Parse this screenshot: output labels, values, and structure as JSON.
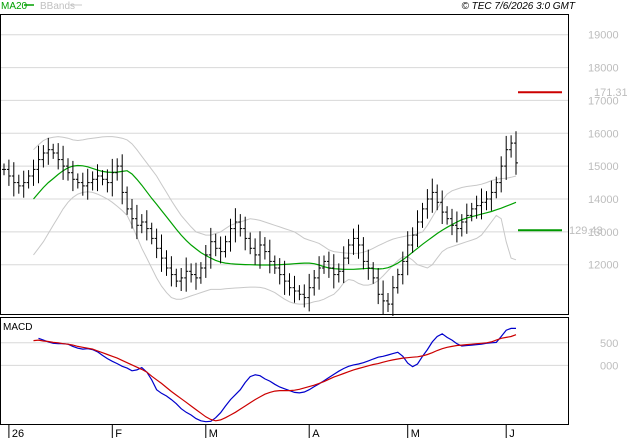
{
  "header": {
    "legend_ma": "MA20",
    "legend_bb": "BBands",
    "copyright": "© TEC 7/6/2026 3:0 GMT"
  },
  "chart_data": [
    {
      "type": "ohlc",
      "title": "",
      "y_ticks": [
        "19000",
        "18000",
        "17000",
        "16000",
        "15000",
        "14000",
        "13000",
        "12000"
      ],
      "y_tick_values": [
        19000,
        18000,
        17000,
        16000,
        15000,
        14000,
        13000,
        12000
      ],
      "ylim": [
        10500,
        19600
      ],
      "x_ticks": [
        "26",
        "F",
        "M",
        "A",
        "M",
        "J"
      ],
      "x_tick_index": [
        1,
        22,
        41,
        62,
        82,
        102
      ],
      "n_bars": 105,
      "colors": {
        "bars": "#000000",
        "ma": "#00a000",
        "bands": "#c8c8c8",
        "resistance": "#cc0000",
        "support": "#009900",
        "grid": "#d8d8d8"
      },
      "resistance": {
        "label": "171.31",
        "value": 17250
      },
      "support": {
        "label": "129.43",
        "value": 13050
      },
      "close": [
        14900,
        14700,
        14500,
        14400,
        14500,
        14700,
        14900,
        15200,
        15400,
        15500,
        15400,
        15200,
        15000,
        14800,
        14600,
        14500,
        14400,
        14500,
        14600,
        14700,
        14600,
        14500,
        14800,
        15000,
        14200,
        13700,
        13400,
        13200,
        13300,
        13100,
        12800,
        12500,
        12200,
        11900,
        11700,
        11500,
        11600,
        11800,
        11700,
        11600,
        11900,
        12300,
        12700,
        12500,
        12400,
        12700,
        13100,
        13300,
        13100,
        12800,
        12500,
        12300,
        12600,
        12400,
        12100,
        11900,
        11700,
        11500,
        11300,
        11200,
        11100,
        11000,
        11300,
        11600,
        11900,
        12100,
        11900,
        11700,
        11800,
        12200,
        12600,
        12800,
        12600,
        12100,
        11900,
        11600,
        11100,
        10900,
        10800,
        11300,
        11700,
        12100,
        12600,
        12900,
        13300,
        13700,
        14000,
        14200,
        13900,
        13600,
        13400,
        13200,
        13100,
        13300,
        13500,
        13700,
        13800,
        13900,
        14000,
        14200,
        14500,
        15000,
        15500,
        15700,
        15100
      ],
      "ma20": [
        14000,
        14180,
        14350,
        14500,
        14620,
        14750,
        14860,
        14950,
        15000,
        15020,
        15010,
        14980,
        14930,
        14880,
        14840,
        14820,
        14810,
        14820,
        14840,
        14860,
        14760,
        14600,
        14420,
        14220,
        14020,
        13840,
        13650,
        13460,
        13270,
        13080,
        12900,
        12740,
        12600,
        12480,
        12370,
        12280,
        12200,
        12130,
        12080,
        12050,
        12030,
        12020,
        12010,
        12005,
        12000,
        11995,
        11990,
        11990,
        11990,
        11995,
        12000,
        12010,
        12020,
        12030,
        12040,
        12050,
        12050,
        12030,
        11990,
        11940,
        11900,
        11880,
        11870,
        11860,
        11860,
        11860,
        11870,
        11880,
        11890,
        11880,
        11870,
        11880,
        11910,
        11970,
        12050,
        12150,
        12260,
        12380,
        12500,
        12620,
        12730,
        12840,
        12950,
        13050,
        13140,
        13220,
        13300,
        13370,
        13420,
        13460,
        13500,
        13540,
        13580,
        13620,
        13670,
        13720,
        13780,
        13840,
        13900
      ],
      "bb_upper": [
        15500,
        15650,
        15780,
        15850,
        15880,
        15900,
        15880,
        15850,
        15800,
        15780,
        15800,
        15830,
        15850,
        15870,
        15890,
        15900,
        15900,
        15880,
        15850,
        15800,
        15680,
        15500,
        15300,
        15100,
        14900,
        14700,
        14450,
        14200,
        13950,
        13720,
        13500,
        13320,
        13150,
        13000,
        12950,
        12900,
        12900,
        12950,
        13000,
        13100,
        13200,
        13250,
        13300,
        13350,
        13400,
        13380,
        13350,
        13300,
        13250,
        13200,
        13150,
        13100,
        13050,
        13000,
        12900,
        12800,
        12750,
        12700,
        12650,
        12550,
        12450,
        12400,
        12380,
        12360,
        12350,
        12340,
        12350,
        12380,
        12430,
        12500,
        12580,
        12650,
        12720,
        12780,
        12820,
        12850,
        12880,
        12900,
        12950,
        13000,
        13200,
        13450,
        13700,
        13950,
        14150,
        14250,
        14300,
        14350,
        14380,
        14400,
        14420,
        14450,
        14500,
        14560,
        14600,
        14620,
        14630,
        14660,
        14700
      ],
      "bb_lower": [
        12300,
        12500,
        12700,
        12950,
        13200,
        13450,
        13700,
        13900,
        14050,
        14150,
        14200,
        14220,
        14200,
        14150,
        14080,
        14000,
        13900,
        13780,
        13650,
        13500,
        13200,
        12850,
        12500,
        12200,
        11900,
        11600,
        11350,
        11150,
        11000,
        10950,
        10950,
        11000,
        11050,
        11100,
        11150,
        11200,
        11250,
        11250,
        11250,
        11270,
        11280,
        11290,
        11300,
        11310,
        11320,
        11320,
        11310,
        11280,
        11220,
        11150,
        11050,
        10950,
        10870,
        10820,
        10800,
        10800,
        10830,
        10870,
        10900,
        10950,
        11030,
        11100,
        11250,
        11450,
        11550,
        11520,
        11430,
        11380,
        11380,
        11420,
        11520,
        11660,
        11820,
        11980,
        12120,
        12240,
        12240,
        12140,
        12000,
        11950,
        11900,
        12000,
        12200,
        12400,
        12500,
        12550,
        12600,
        12650,
        12700,
        12750,
        12800,
        12900,
        13100,
        13300,
        13500,
        13400,
        12700,
        12200,
        12150
      ]
    },
    {
      "type": "line",
      "title": "MACD",
      "y_ticks": [
        "500",
        "000"
      ],
      "y_tick_values": [
        500,
        0
      ],
      "ylim": [
        -1300,
        1050
      ],
      "colors": {
        "macd": "#0000cc",
        "signal": "#cc0000"
      },
      "series": [
        {
          "key": "macd",
          "values": [
            600,
            560,
            520,
            490,
            480,
            480,
            470,
            420,
            380,
            360,
            370,
            350,
            300,
            220,
            150,
            90,
            40,
            -20,
            -60,
            -120,
            -100,
            -50,
            -150,
            -320,
            -540,
            -620,
            -680,
            -760,
            -850,
            -960,
            -1040,
            -1100,
            -1180,
            -1230,
            -1250,
            -1240,
            -1160,
            -1050,
            -900,
            -760,
            -650,
            -540,
            -380,
            -250,
            -210,
            -230,
            -300,
            -350,
            -420,
            -480,
            -520,
            -560,
            -600,
            -610,
            -590,
            -540,
            -470,
            -410,
            -340,
            -270,
            -200,
            -130,
            -70,
            -20,
            10,
            30,
            60,
            100,
            140,
            180,
            200,
            230,
            260,
            290,
            200,
            50,
            -30,
            30,
            200,
            350,
            520,
            640,
            700,
            620,
            560,
            480,
            430,
            440,
            450,
            460,
            470,
            490,
            500,
            510,
            640,
            780,
            820,
            820
          ]
        },
        {
          "key": "signal",
          "values": [
            550,
            560,
            540,
            530,
            510,
            500,
            480,
            470,
            450,
            420,
            400,
            380,
            360,
            320,
            280,
            240,
            200,
            160,
            110,
            60,
            10,
            -40,
            -90,
            -150,
            -240,
            -320,
            -400,
            -490,
            -580,
            -660,
            -740,
            -820,
            -900,
            -980,
            -1060,
            -1140,
            -1200,
            -1230,
            -1210,
            -1160,
            -1100,
            -1040,
            -970,
            -900,
            -830,
            -760,
            -700,
            -640,
            -600,
            -570,
            -560,
            -560,
            -560,
            -550,
            -530,
            -500,
            -470,
            -440,
            -400,
            -360,
            -310,
            -260,
            -220,
            -180,
            -140,
            -100,
            -70,
            -40,
            -10,
            20,
            40,
            70,
            100,
            120,
            140,
            160,
            170,
            180,
            190,
            210,
            240,
            280,
            330,
            370,
            400,
            420,
            440,
            450,
            460,
            470,
            480,
            490,
            500,
            520,
            560,
            600,
            620,
            640,
            680
          ]
        }
      ]
    }
  ]
}
